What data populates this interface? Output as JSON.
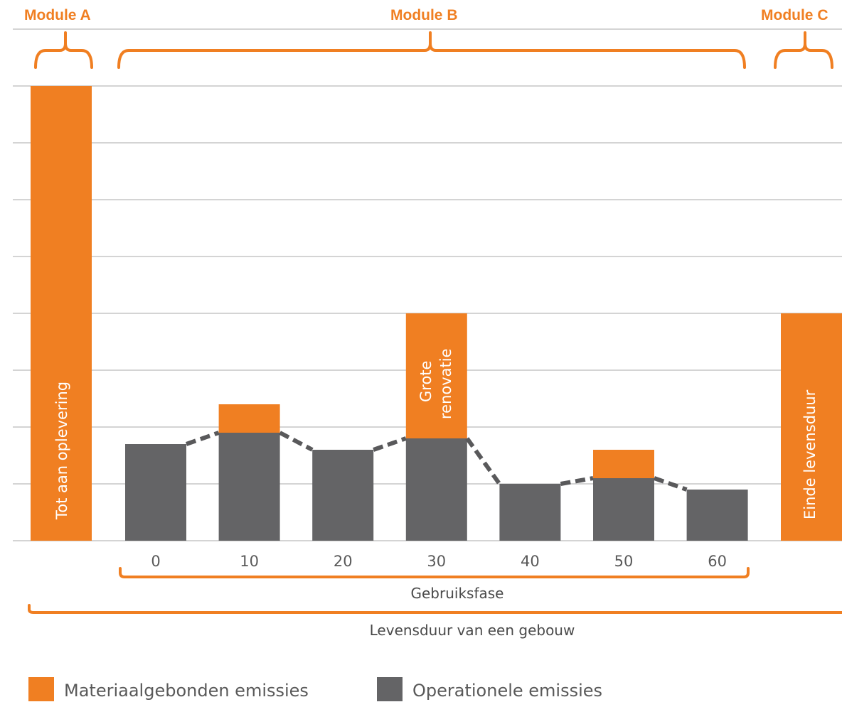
{
  "modules": {
    "a_label": "Module A",
    "b_label": "Module B",
    "c_label": "Module C"
  },
  "colors": {
    "material": "#f07f22",
    "operational": "#646466",
    "grid": "#d4d4d4",
    "dash": "#59595b",
    "text": "#595959"
  },
  "labels": {
    "construction": "Tot aan oplevering",
    "renovation_line1": "Grote",
    "renovation_line2": "renovatie",
    "end_of_life": "Einde levensduur",
    "use_phase": "Gebruiksfase",
    "building_lifetime": "Levensduur van een gebouw"
  },
  "legend": {
    "material": "Materiaalgebonden emissies",
    "operational": "Operationele emissies"
  },
  "chart_data": {
    "type": "bar",
    "stacked": true,
    "ylim": [
      0,
      8
    ],
    "grid": true,
    "y_tick_labels": false,
    "legend_position": "bottom-left",
    "module_a": {
      "label": "Tot aan oplevering",
      "material": 8.0
    },
    "module_c": {
      "label": "Einde levensduur",
      "material": 4.0
    },
    "categories": [
      "0",
      "10",
      "20",
      "30",
      "40",
      "50",
      "60"
    ],
    "series": [
      {
        "name": "Operationele emissies",
        "values": [
          1.7,
          1.9,
          1.6,
          1.8,
          1.0,
          1.1,
          0.9
        ]
      },
      {
        "name": "Materiaalgebonden emissies",
        "values": [
          0,
          0.5,
          0,
          2.2,
          0,
          0.5,
          0
        ]
      }
    ],
    "trend_line": "dashed, connects operational emissions",
    "xlabel": "Gebruiksfase"
  }
}
